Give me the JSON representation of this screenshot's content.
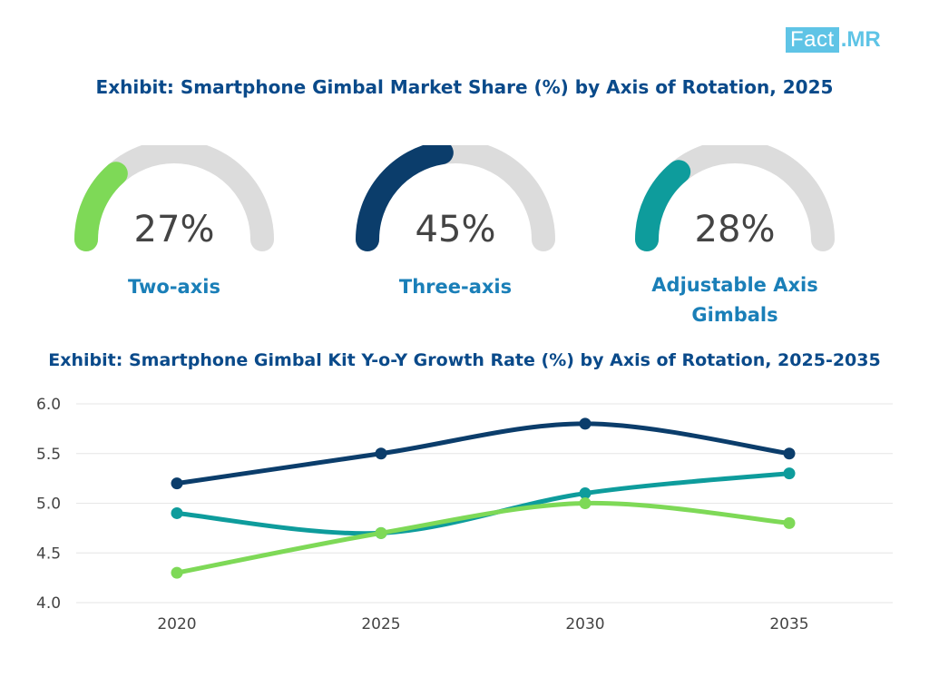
{
  "logo": {
    "part1": "Fact",
    "part2": ".MR"
  },
  "title_top": "Exhibit: Smartphone Gimbal Market Share (%) by Axis of Rotation, 2025",
  "title_bottom": "Exhibit: Smartphone Gimbal Kit Y-o-Y Growth Rate (%) by Axis of Rotation, 2025-2035",
  "colors": {
    "title": "#0a4a8a",
    "label": "#1a7fb8",
    "track": "#dcdcdc",
    "grid": "#e6e6e6"
  },
  "chart_data": [
    {
      "type": "gauge",
      "gauges": [
        {
          "label": "Two-axis",
          "value": 27,
          "display": "27%",
          "color": "#7ed957"
        },
        {
          "label": "Three-axis",
          "value": 45,
          "display": "45%",
          "color": "#0b3d6b"
        },
        {
          "label": "Adjustable Axis Gimbals",
          "value": 28,
          "display": "28%",
          "color": "#0e9c9c"
        }
      ]
    },
    {
      "type": "line",
      "categories": [
        "2020",
        "2025",
        "2030",
        "2035"
      ],
      "series": [
        {
          "color": "#0b3d6b",
          "values": [
            5.2,
            5.5,
            5.8,
            5.5
          ]
        },
        {
          "color": "#0e9c9c",
          "values": [
            4.9,
            4.7,
            5.1,
            5.3
          ]
        },
        {
          "color": "#7ed957",
          "values": [
            4.3,
            4.7,
            5.0,
            4.8
          ]
        }
      ],
      "ylim": [
        4.0,
        6.0
      ],
      "yticks": [
        "4.0",
        "4.5",
        "5.0",
        "5.5",
        "6.0"
      ],
      "grid": true
    }
  ]
}
